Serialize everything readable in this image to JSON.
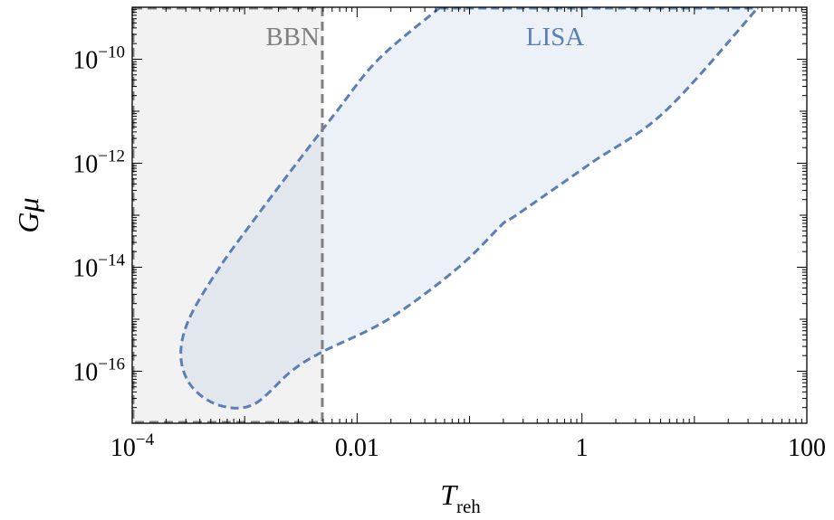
{
  "chart_data": {
    "type": "area",
    "title": "",
    "xlabel": "T",
    "xlabel_sub": "reh",
    "ylabel": "Gμ",
    "xscale": "log",
    "yscale": "log",
    "xlim": [
      0.0001,
      100
    ],
    "ylim": [
      1e-17,
      1e-09
    ],
    "x_ticks": [
      {
        "value": 0.0001,
        "label": "10",
        "exp": "−4"
      },
      {
        "value": 0.01,
        "label": "0.01",
        "exp": ""
      },
      {
        "value": 1,
        "label": "1",
        "exp": ""
      },
      {
        "value": 100,
        "label": "100",
        "exp": ""
      }
    ],
    "y_ticks": [
      {
        "value": 1e-10,
        "label": "10",
        "exp": "−10"
      },
      {
        "value": 1e-12,
        "label": "10",
        "exp": "−12"
      },
      {
        "value": 1e-14,
        "label": "10",
        "exp": "−14"
      },
      {
        "value": 1e-16,
        "label": "10",
        "exp": "−16"
      }
    ],
    "regions": [
      {
        "name": "BBN",
        "label": "BBN",
        "color": "#7f7f7f",
        "fill": "#f2f2f2",
        "x_range": [
          0.0001,
          0.005
        ],
        "y_range": [
          1e-17,
          1e-09
        ]
      },
      {
        "name": "LISA",
        "label": "LISA",
        "color": "#5b7fb5",
        "fill": "rgba(170,190,225,0.22)",
        "upper_boundary": [
          [
            0.00032,
            1e-15
          ],
          [
            0.0006,
            1e-14
          ],
          [
            0.0013,
            1e-13
          ],
          [
            0.0029,
            1e-12
          ],
          [
            0.0066,
            1e-11
          ],
          [
            0.0155,
            1e-10
          ],
          [
            0.055,
            1e-09
          ]
        ],
        "lower_boundary": [
          [
            0.00034,
            5e-17
          ],
          [
            0.0006,
            2.2e-17
          ],
          [
            0.0012,
            2.3e-17
          ],
          [
            0.0026,
            1e-16
          ],
          [
            0.0048,
            2.3e-16
          ],
          [
            0.019,
            1e-15
          ],
          [
            0.08,
            1e-14
          ],
          [
            0.2,
            7e-14
          ],
          [
            0.26,
            1e-13
          ],
          [
            1.2,
            1e-12
          ],
          [
            5.5,
            1e-11
          ],
          [
            37,
            1e-09
          ]
        ]
      }
    ],
    "grid": false,
    "legend": "none"
  }
}
